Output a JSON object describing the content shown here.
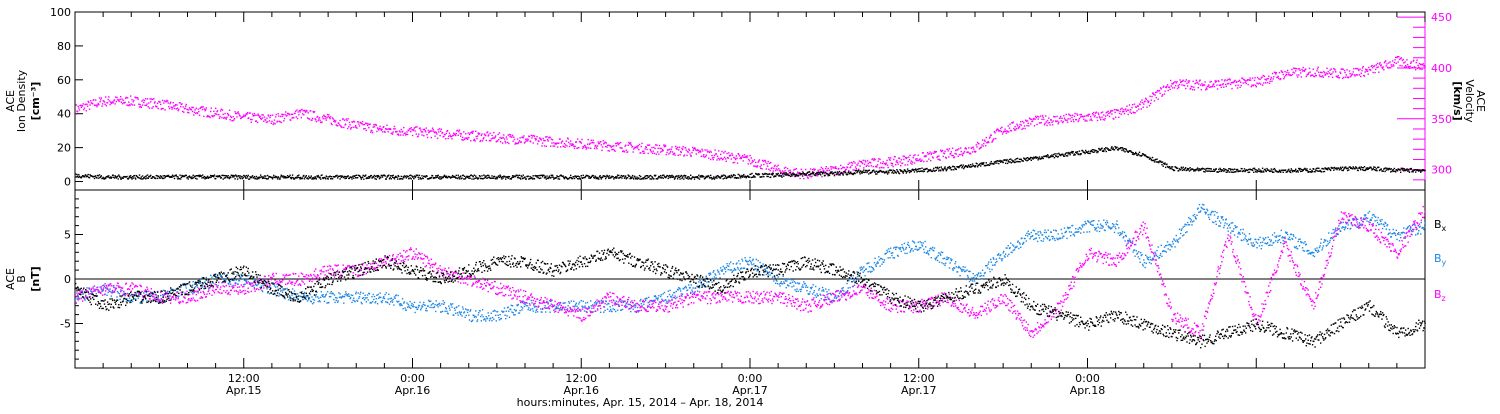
{
  "chart_data": [
    {
      "type": "scatter",
      "panel": "top",
      "ylabel_left": [
        "ACE",
        "Ion Density",
        "[cm⁻³]"
      ],
      "ylabel_right": [
        "ACE",
        "Velocity",
        "[km/s]"
      ],
      "x_range_hours": [
        0,
        96
      ],
      "ylim_left": [
        -5,
        100
      ],
      "ylim_right": [
        280,
        455
      ],
      "yticks_left": [
        0,
        20,
        40,
        60,
        80,
        100
      ],
      "yticks_right": [
        300,
        350,
        400,
        450
      ],
      "grid": false,
      "series": [
        {
          "axis": "left",
          "color": "#000000",
          "x": [
            0,
            2,
            4,
            6,
            8,
            10,
            12,
            14,
            16,
            18,
            20,
            22,
            24,
            26,
            28,
            30,
            32,
            34,
            36,
            38,
            40,
            42,
            44,
            46,
            48,
            50,
            52,
            54,
            56,
            58,
            60,
            62,
            64,
            66,
            68,
            70,
            72,
            74,
            76,
            78,
            80,
            82,
            84,
            86,
            88,
            90,
            92,
            94,
            96
          ],
          "values": [
            4,
            3,
            3,
            3,
            3,
            3,
            3,
            3,
            3,
            3,
            3,
            3,
            3,
            3,
            3,
            3,
            3,
            3,
            3,
            3,
            3,
            3,
            3,
            3,
            4,
            4,
            5,
            5,
            6,
            6,
            7,
            8,
            10,
            12,
            14,
            16,
            18,
            20,
            16,
            8,
            7,
            7,
            7,
            7,
            7,
            8,
            8,
            7,
            7
          ]
        },
        {
          "axis": "right",
          "color": "#ff00ff",
          "x": [
            0,
            2,
            4,
            6,
            8,
            10,
            12,
            14,
            16,
            18,
            20,
            22,
            24,
            26,
            28,
            30,
            32,
            34,
            36,
            38,
            40,
            42,
            44,
            46,
            48,
            50,
            52,
            54,
            56,
            58,
            60,
            62,
            64,
            66,
            68,
            70,
            72,
            74,
            76,
            78,
            80,
            82,
            84,
            86,
            88,
            90,
            92,
            94,
            96
          ],
          "values": [
            360,
            368,
            368,
            365,
            360,
            356,
            352,
            350,
            356,
            350,
            344,
            340,
            338,
            336,
            334,
            332,
            330,
            328,
            326,
            324,
            322,
            320,
            318,
            314,
            310,
            300,
            296,
            300,
            306,
            308,
            312,
            316,
            322,
            340,
            348,
            350,
            352,
            355,
            365,
            385,
            384,
            385,
            387,
            395,
            397,
            395,
            398,
            407,
            402
          ]
        }
      ]
    },
    {
      "type": "scatter",
      "panel": "bottom",
      "ylabel_left": [
        "ACE",
        "B",
        "[nT]"
      ],
      "x_range_hours": [
        0,
        96
      ],
      "ylim": [
        -10,
        10
      ],
      "yticks": [
        -5,
        0,
        5
      ],
      "zero_line": true,
      "grid": false,
      "legend_position": "right",
      "series": [
        {
          "name": "Bx",
          "name_main": "B",
          "name_sub": "x",
          "color": "#000000",
          "x": [
            0,
            2,
            4,
            6,
            8,
            10,
            12,
            14,
            16,
            18,
            20,
            22,
            24,
            26,
            28,
            30,
            32,
            34,
            36,
            38,
            40,
            42,
            44,
            46,
            48,
            50,
            52,
            54,
            56,
            58,
            60,
            62,
            64,
            66,
            68,
            70,
            72,
            74,
            76,
            78,
            80,
            82,
            84,
            86,
            88,
            90,
            92,
            94,
            96
          ],
          "values": [
            -1,
            -3,
            -2,
            -2,
            -1,
            0,
            1,
            -1,
            -2,
            0,
            1,
            2,
            1,
            0,
            1,
            2,
            2,
            1,
            2,
            3,
            2,
            1,
            0,
            -1,
            1,
            1,
            2,
            1,
            0,
            -2,
            -3,
            -2,
            -1,
            0,
            -3,
            -4,
            -5,
            -4,
            -5,
            -6,
            -7,
            -6,
            -5,
            -6,
            -7,
            -5,
            -3,
            -6,
            -5
          ]
        },
        {
          "name": "By",
          "name_main": "B",
          "name_sub": "y",
          "color": "#1e88e5",
          "x": [
            0,
            2,
            4,
            6,
            8,
            10,
            12,
            14,
            16,
            18,
            20,
            22,
            24,
            26,
            28,
            30,
            32,
            34,
            36,
            38,
            40,
            42,
            44,
            46,
            48,
            50,
            52,
            54,
            56,
            58,
            60,
            62,
            64,
            66,
            68,
            70,
            72,
            74,
            76,
            78,
            80,
            82,
            84,
            86,
            88,
            90,
            92,
            94,
            96
          ],
          "values": [
            -2,
            -1,
            -2,
            -2,
            -1,
            0,
            0,
            -1,
            -2,
            -2,
            -2,
            -2,
            -3,
            -3,
            -4,
            -4,
            -3,
            -3,
            -3,
            -3,
            -3,
            -2,
            -1,
            1,
            2,
            0,
            -1,
            -2,
            1,
            3,
            4,
            2,
            0,
            3,
            5,
            5,
            6,
            6,
            2,
            4,
            8,
            6,
            4,
            5,
            3,
            6,
            7,
            5,
            6
          ]
        },
        {
          "name": "Bz",
          "name_main": "B",
          "name_sub": "z",
          "color": "#ff00ff",
          "x": [
            0,
            2,
            4,
            6,
            8,
            10,
            12,
            14,
            16,
            18,
            20,
            22,
            24,
            26,
            28,
            30,
            32,
            34,
            36,
            38,
            40,
            42,
            44,
            46,
            48,
            50,
            52,
            54,
            56,
            58,
            60,
            62,
            64,
            66,
            68,
            70,
            72,
            74,
            76,
            78,
            80,
            82,
            84,
            86,
            88,
            90,
            92,
            94,
            96
          ],
          "values": [
            -2,
            -1,
            -1,
            -2,
            -2,
            -1,
            -1,
            0,
            0,
            1,
            1,
            2,
            3,
            1,
            0,
            -1,
            -2,
            -3,
            -4,
            -2,
            -3,
            -3,
            -2,
            -2,
            -2,
            -2,
            -3,
            -2,
            -1,
            -3,
            -3,
            -2,
            -4,
            -2,
            -6,
            -3,
            3,
            2,
            6,
            -4,
            -6,
            5,
            -5,
            4,
            -3,
            7,
            6,
            3,
            8
          ]
        }
      ]
    }
  ],
  "x_axis": {
    "ticks": [
      {
        "hour": 12,
        "time": "12:00",
        "date": "Apr.15"
      },
      {
        "hour": 24,
        "time": "0:00",
        "date": "Apr.16"
      },
      {
        "hour": 36,
        "time": "12:00",
        "date": "Apr.16"
      },
      {
        "hour": 48,
        "time": "0:00",
        "date": "Apr.17"
      },
      {
        "hour": 60,
        "time": "12:00",
        "date": "Apr.17"
      },
      {
        "hour": 72,
        "time": "0:00",
        "date": "Apr.18"
      }
    ],
    "label": "hours:minutes, Apr. 15, 2014 – Apr. 18, 2014"
  },
  "colors": {
    "density": "#000000",
    "velocity": "#ff00ff",
    "bx": "#000000",
    "by": "#1e88e5",
    "bz": "#ff00ff",
    "axes": "#000000"
  }
}
